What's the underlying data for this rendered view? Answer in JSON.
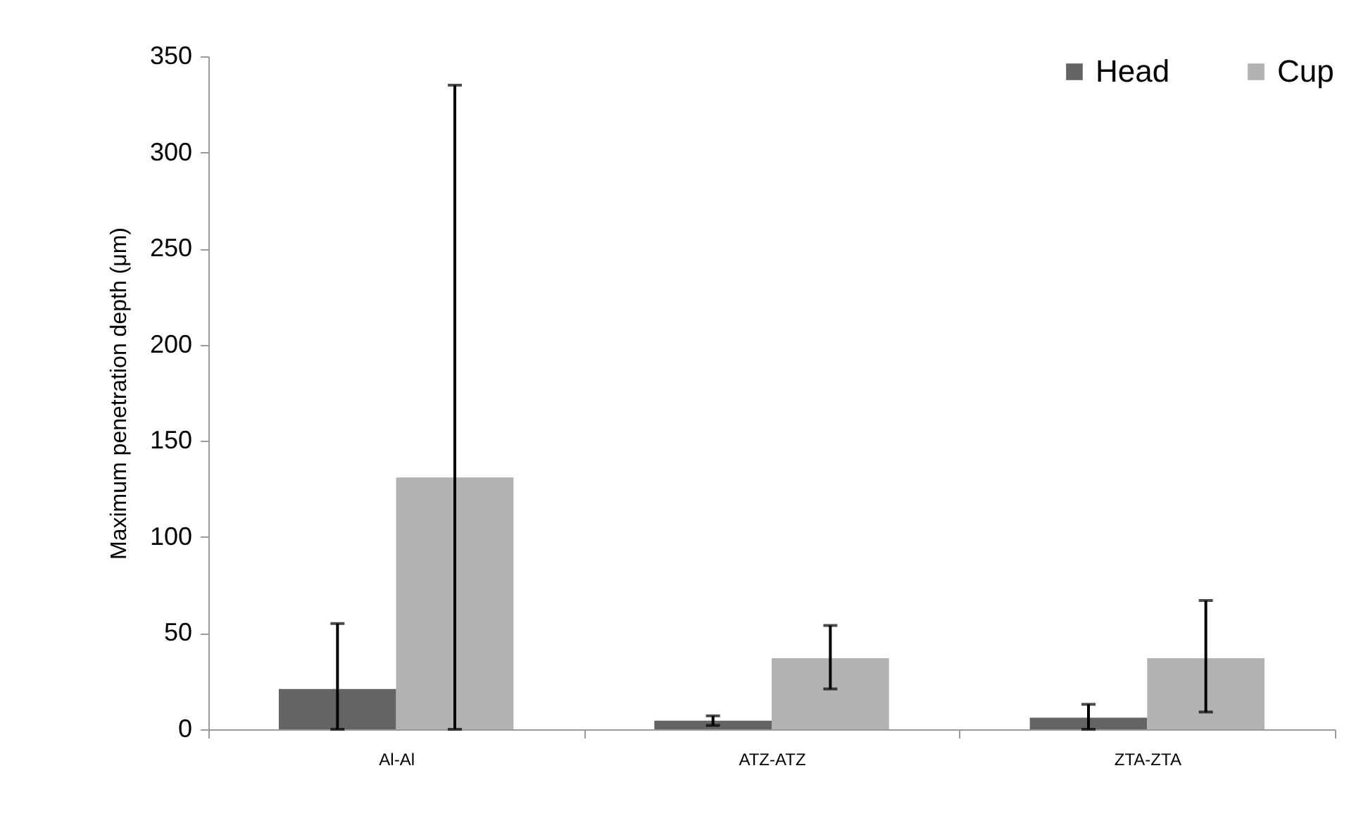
{
  "chart_data": {
    "type": "bar",
    "ylabel": "Maximum penetration depth (μm)",
    "categories": [
      "Al-Al",
      "ATZ-ATZ",
      "ZTA-ZTA"
    ],
    "series": [
      {
        "name": "Head",
        "color": "#646464",
        "values": [
          21,
          4.5,
          6
        ],
        "errors": [
          [
            0,
            55
          ],
          [
            2,
            7
          ],
          [
            0,
            13
          ]
        ]
      },
      {
        "name": "Cup",
        "color": "#b2b2b2",
        "values": [
          131,
          37,
          37
        ],
        "errors": [
          [
            0,
            335
          ],
          [
            21,
            54
          ],
          [
            9,
            67
          ]
        ]
      }
    ],
    "ylim": [
      0,
      350
    ],
    "yticks": [
      0,
      50,
      100,
      150,
      200,
      250,
      300,
      350
    ],
    "grid": false,
    "legend": "top right"
  }
}
